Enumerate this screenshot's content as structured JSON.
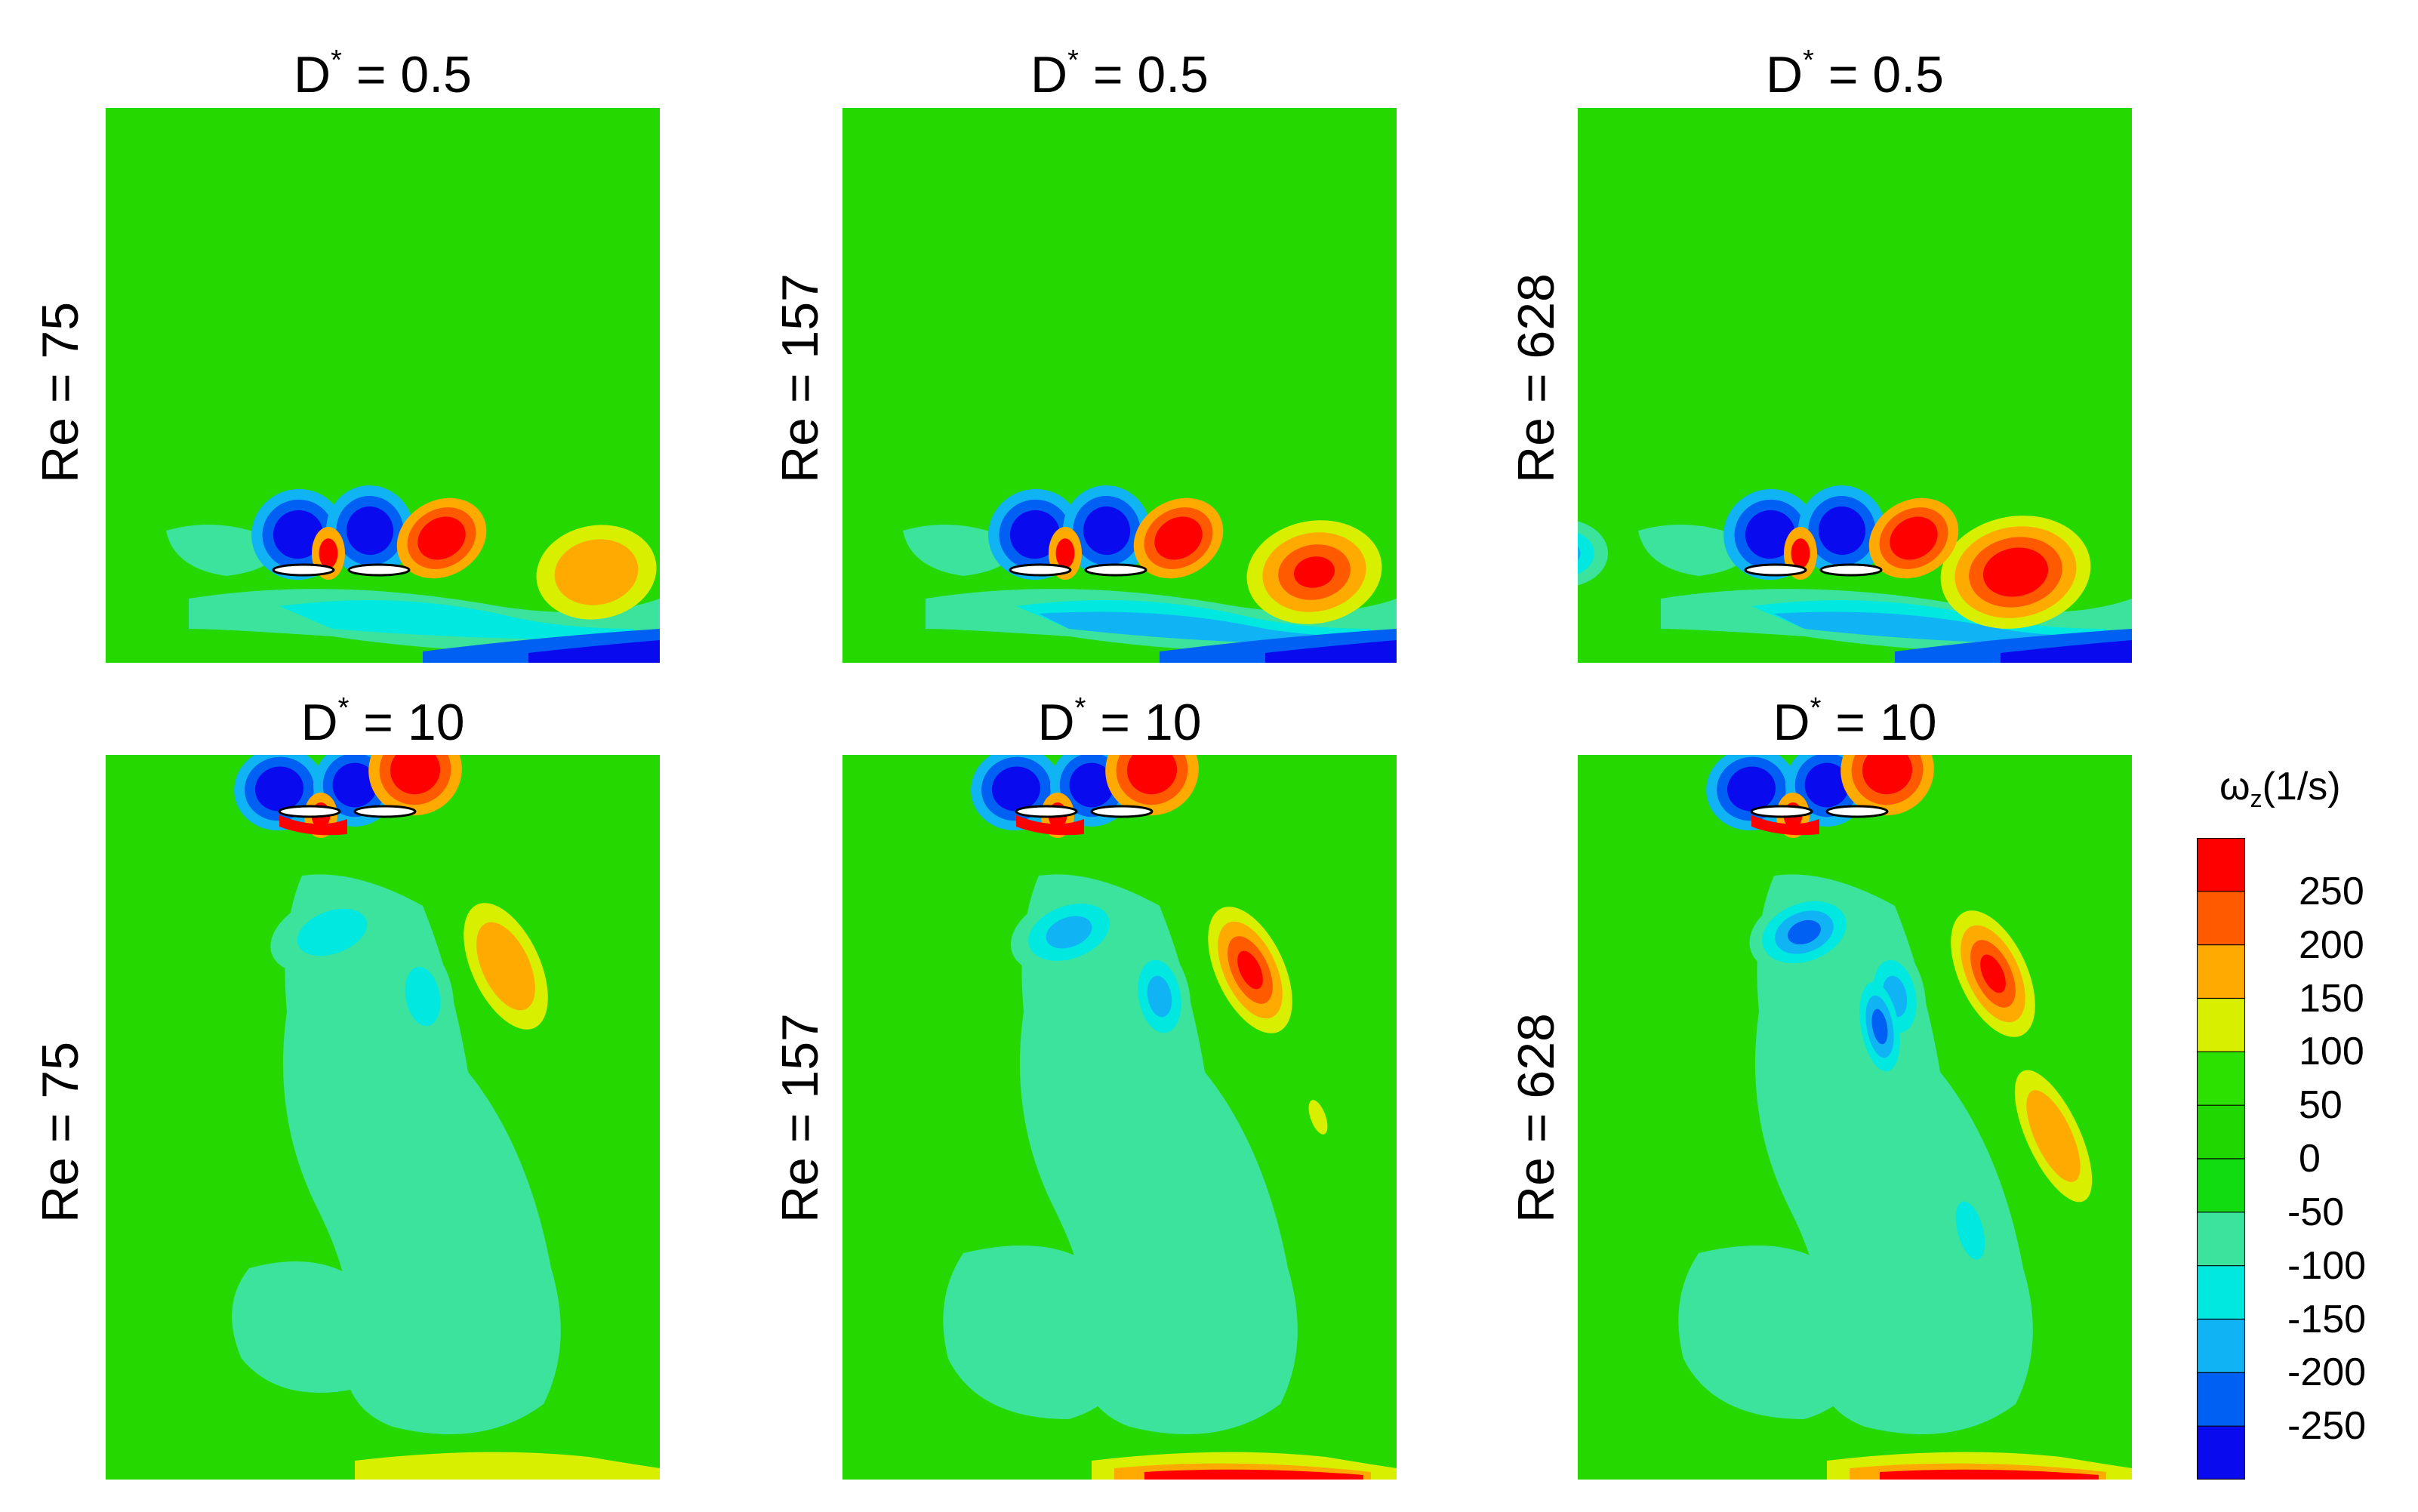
{
  "chart_data": {
    "type": "heatmap",
    "description_quantity": "vorticity contour plots",
    "panels": [
      {
        "row": 0,
        "col": 0,
        "title_prefix": "D",
        "title_sup": "*",
        "title_suffix": " = 0.5",
        "re_label": "Re = 75",
        "D_star": 0.5,
        "Re": 75
      },
      {
        "row": 0,
        "col": 1,
        "title_prefix": "D",
        "title_sup": "*",
        "title_suffix": " = 0.5",
        "re_label": "Re = 157",
        "D_star": 0.5,
        "Re": 157
      },
      {
        "row": 0,
        "col": 2,
        "title_prefix": "D",
        "title_sup": "*",
        "title_suffix": " = 0.5",
        "re_label": "Re = 628",
        "D_star": 0.5,
        "Re": 628
      },
      {
        "row": 1,
        "col": 0,
        "title_prefix": "D",
        "title_sup": "*",
        "title_suffix": " = 10",
        "re_label": "Re = 75",
        "D_star": 10,
        "Re": 75
      },
      {
        "row": 1,
        "col": 1,
        "title_prefix": "D",
        "title_sup": "*",
        "title_suffix": " = 10",
        "re_label": "Re = 157",
        "D_star": 10,
        "Re": 157
      },
      {
        "row": 1,
        "col": 2,
        "title_prefix": "D",
        "title_sup": "*",
        "title_suffix": " = 10",
        "re_label": "Re = 628",
        "D_star": 10,
        "Re": 628
      }
    ],
    "colorbar": {
      "title_main": "ω",
      "title_sub": "z",
      "title_unit": "(1/s)",
      "levels": [
        250,
        200,
        150,
        100,
        50,
        0,
        -50,
        -100,
        -150,
        -200,
        -250
      ],
      "tick_labels": [
        "250",
        "200",
        "150",
        "100",
        "50",
        "0",
        "-50",
        "-100",
        "-150",
        "-200",
        "-250"
      ],
      "colors": [
        "#ff0000",
        "#ff5a00",
        "#ffaa00",
        "#d8f000",
        "#2ce000",
        "#20d800",
        "#10dc10",
        "#3ce39c",
        "#00e8e0",
        "#10b4f4",
        "#0060f4",
        "#0a0aee"
      ]
    },
    "color_scale": {
      "red": "#ff0000",
      "orange_red": "#ff5a00",
      "orange": "#ffaa00",
      "yellow": "#d8f000",
      "green": "#25d900",
      "teal": "#3ce39c",
      "cyan": "#00e8e0",
      "light_blue": "#10b4f4",
      "mid_blue": "#0060f4",
      "blue": "#0a0aee"
    }
  }
}
